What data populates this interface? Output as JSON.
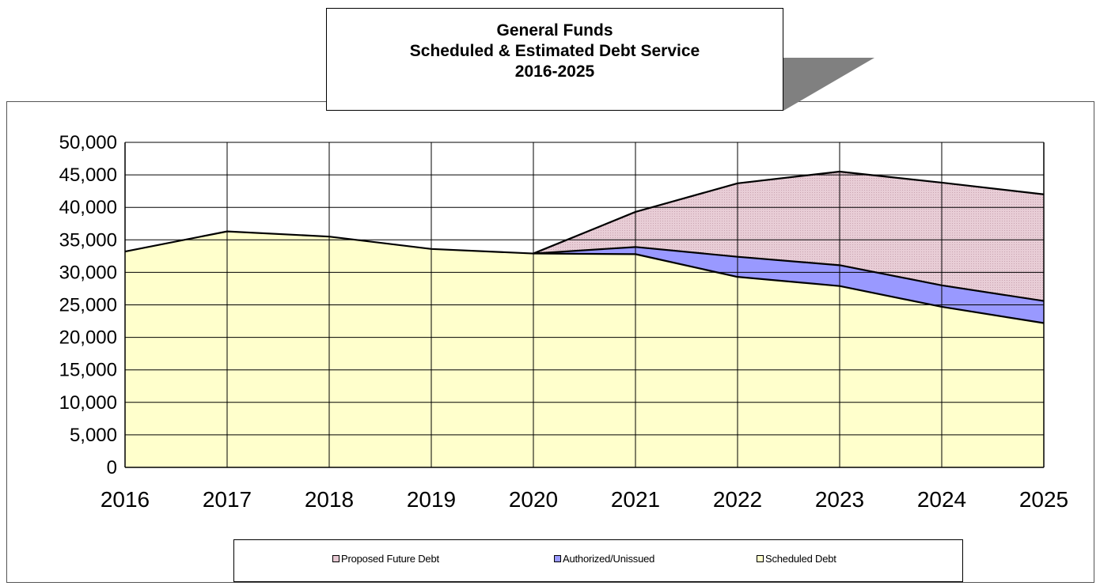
{
  "title": {
    "line1": "General Funds",
    "line2": "Scheduled & Estimated Debt Service",
    "line3": "2016-2025"
  },
  "chart_data": {
    "type": "area",
    "stacked": true,
    "categories": [
      "2016",
      "2017",
      "2018",
      "2019",
      "2020",
      "2021",
      "2022",
      "2023",
      "2024",
      "2025"
    ],
    "ylim": [
      0,
      50000
    ],
    "yticks": [
      0,
      5000,
      10000,
      15000,
      20000,
      25000,
      30000,
      35000,
      40000,
      45000,
      50000
    ],
    "ytick_labels": [
      "0",
      "5,000",
      "10,000",
      "15,000",
      "20,000",
      "25,000",
      "30,000",
      "35,000",
      "40,000",
      "45,000",
      "50,000"
    ],
    "grid": true,
    "legend_position": "bottom",
    "series": [
      {
        "name": "Scheduled Debt",
        "color": "#ffffcc",
        "values": [
          33200,
          36300,
          35500,
          33600,
          32900,
          32800,
          29300,
          27900,
          24700,
          22200
        ]
      },
      {
        "name": "Authorized/Unissued",
        "color": "#9999ff",
        "values": [
          0,
          0,
          0,
          0,
          0,
          1100,
          3100,
          3200,
          3300,
          3400
        ]
      },
      {
        "name": "Proposed Future Debt",
        "color": "#e6c8d2",
        "values": [
          0,
          0,
          0,
          0,
          0,
          5400,
          11300,
          14400,
          15800,
          16400
        ]
      }
    ]
  }
}
